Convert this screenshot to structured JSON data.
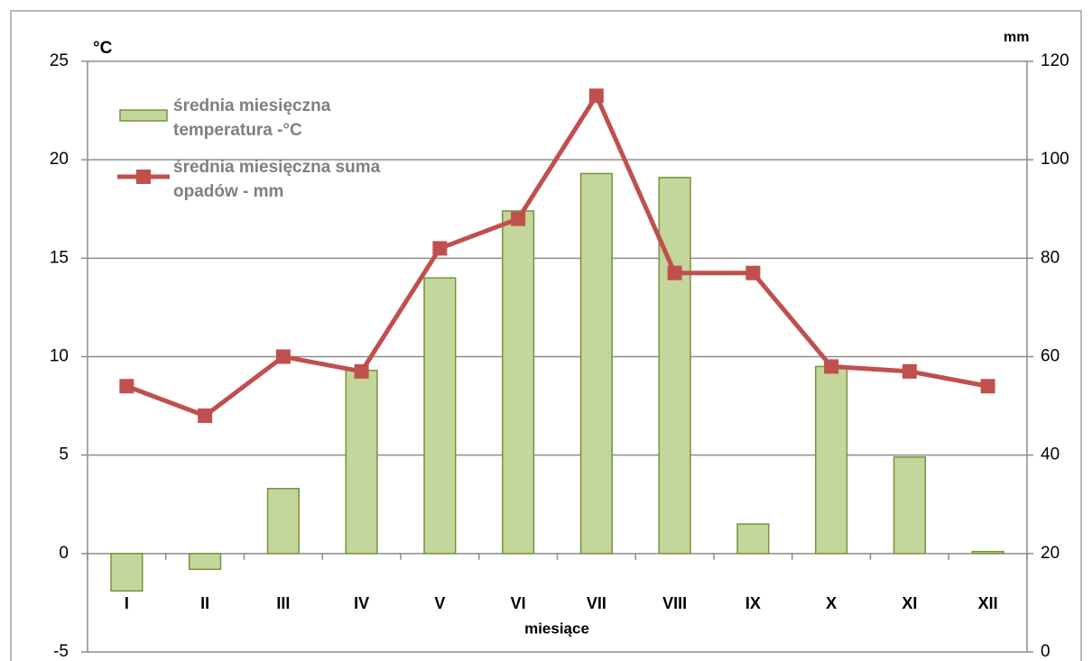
{
  "chart_data": {
    "type": "bar",
    "categories": [
      "I",
      "II",
      "III",
      "IV",
      "V",
      "VI",
      "VII",
      "VIII",
      "IX",
      "X",
      "XI",
      "XII"
    ],
    "series": [
      {
        "name": "średnia miesięczna temperatura -°C",
        "type": "bar",
        "color": "#c3d69b",
        "stroke": "#77933c",
        "values": [
          -1.9,
          -0.8,
          3.3,
          9.3,
          14.0,
          17.4,
          19.3,
          19.1,
          1.5,
          9.5,
          4.9,
          0.1
        ]
      },
      {
        "name": "średnia miesięczna suma opadów - mm",
        "type": "line",
        "axis": "y2",
        "color": "#c0504d",
        "values": [
          54,
          48,
          60,
          57,
          82,
          88,
          113,
          77,
          77,
          58,
          57,
          54
        ]
      }
    ],
    "ylabel": "°C",
    "y2label": "mm",
    "xlabel": "miesiące",
    "ylim": [
      -5,
      25
    ],
    "yticks": [
      -5,
      0,
      5,
      10,
      15,
      20,
      25
    ],
    "y2lim": [
      0,
      120
    ],
    "y2ticks": [
      0,
      20,
      40,
      60,
      80,
      100,
      120
    ],
    "grid": true
  }
}
